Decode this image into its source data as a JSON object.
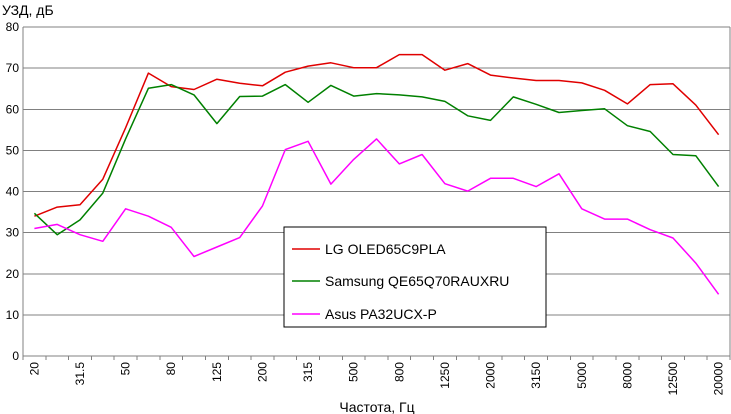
{
  "chart_data": {
    "type": "line",
    "ylabel": "УЗД, дБ",
    "xlabel": "Частота, Гц",
    "ylim": [
      0,
      80
    ],
    "yticks": [
      0,
      10,
      20,
      30,
      40,
      50,
      60,
      70,
      80
    ],
    "grid": "horizontal",
    "legend_position": "center-bottom",
    "categories": [
      "20",
      "25",
      "31.5",
      "40",
      "50",
      "63",
      "80",
      "100",
      "125",
      "160",
      "200",
      "250",
      "315",
      "400",
      "500",
      "630",
      "800",
      "1000",
      "1250",
      "1600",
      "2000",
      "2500",
      "3150",
      "4000",
      "5000",
      "6300",
      "8000",
      "10000",
      "12500",
      "16000",
      "20000"
    ],
    "xtick_labels": [
      "20",
      "31.5",
      "50",
      "80",
      "125",
      "200",
      "315",
      "500",
      "800",
      "1250",
      "2000",
      "3150",
      "5000",
      "8000",
      "12500",
      "20000"
    ],
    "series": [
      {
        "name": "LG OLED65C9PLA",
        "color": "#e00000",
        "values": [
          34,
          36.2,
          36.8,
          43,
          55.5,
          68.8,
          65.5,
          64.8,
          67.3,
          66.3,
          65.7,
          69,
          70.5,
          71.3,
          70.1,
          70.1,
          73.3,
          73.3,
          69.5,
          71.1,
          68.3,
          67.6,
          67,
          67,
          66.4,
          64.6,
          61.3,
          66,
          66.2,
          61,
          53.8
        ]
      },
      {
        "name": "Samsung QE65Q70RAUXRU",
        "color": "#008000",
        "values": [
          34.7,
          29.5,
          33.1,
          39.6,
          52.8,
          65.1,
          66,
          63.5,
          56.5,
          63.1,
          63.2,
          66,
          61.7,
          65.8,
          63.2,
          63.8,
          63.5,
          63,
          61.9,
          58.4,
          57.3,
          63,
          61.2,
          59.2,
          59.7,
          60.1,
          56,
          54.6,
          49,
          48.7,
          41.2
        ]
      },
      {
        "name": "Asus PA32UCX-P",
        "color": "#ff00ff",
        "values": [
          31,
          32,
          29.5,
          27.9,
          35.8,
          34,
          31.3,
          24.2,
          26.5,
          28.8,
          36.5,
          50.2,
          52.2,
          41.8,
          47.8,
          52.8,
          46.7,
          49,
          41.9,
          40.1,
          43.2,
          43.2,
          41.2,
          44.3,
          35.8,
          33.3,
          33.3,
          30.7,
          28.7,
          22.6,
          15
        ]
      }
    ]
  }
}
